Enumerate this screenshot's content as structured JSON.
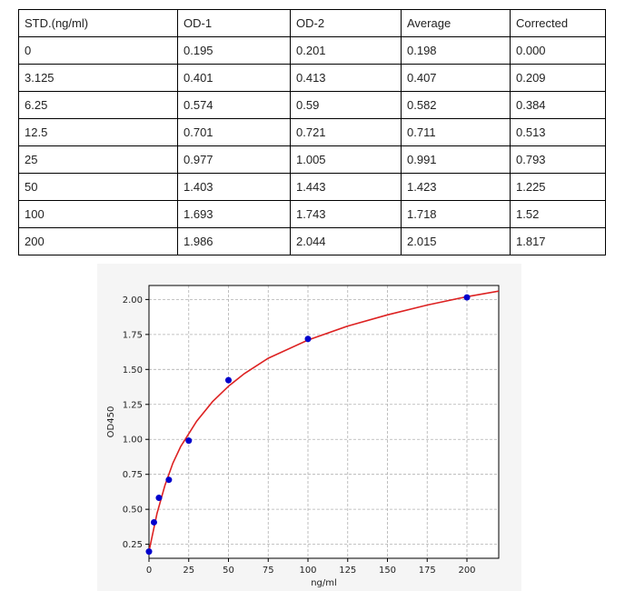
{
  "table": {
    "headers": [
      "STD.(ng/ml)",
      "OD-1",
      "OD-2",
      "Average",
      "Corrected"
    ],
    "rows": [
      [
        "0",
        "0.195",
        "0.201",
        "0.198",
        "0.000"
      ],
      [
        "3.125",
        "0.401",
        "0.413",
        "0.407",
        "0.209"
      ],
      [
        "6.25",
        "0.574",
        "0.59",
        "0.582",
        "0.384"
      ],
      [
        "12.5",
        "0.701",
        "0.721",
        "0.711",
        "0.513"
      ],
      [
        "25",
        "0.977",
        "1.005",
        "0.991",
        "0.793"
      ],
      [
        "50",
        "1.403",
        "1.443",
        "1.423",
        "1.225"
      ],
      [
        "100",
        "1.693",
        "1.743",
        "1.718",
        "1.52"
      ],
      [
        "200",
        "1.986",
        "2.044",
        "2.015",
        "1.817"
      ]
    ]
  },
  "chart_data": {
    "type": "scatter",
    "xlabel": "ng/ml",
    "ylabel": "OD450",
    "xlim": [
      0,
      220
    ],
    "ylim": [
      0.15,
      2.1
    ],
    "xticks": [
      0,
      25,
      50,
      75,
      100,
      125,
      150,
      175,
      200
    ],
    "yticks": [
      0.25,
      0.5,
      0.75,
      1.0,
      1.25,
      1.5,
      1.75,
      2.0
    ],
    "ytick_labels": [
      "0.25",
      "0.50",
      "0.75",
      "1.00",
      "1.25",
      "1.50",
      "1.75",
      "2.00"
    ],
    "grid": true,
    "points": {
      "x": [
        0,
        3.125,
        6.25,
        12.5,
        25,
        50,
        100,
        200
      ],
      "y": [
        0.198,
        0.407,
        0.582,
        0.711,
        0.991,
        1.423,
        1.718,
        2.015
      ],
      "color": "#0000cc"
    },
    "fit_curve": {
      "x": [
        0,
        5,
        10,
        15,
        20,
        25,
        30,
        40,
        50,
        60,
        75,
        100,
        125,
        150,
        175,
        200,
        220
      ],
      "y": [
        0.2,
        0.47,
        0.67,
        0.83,
        0.95,
        1.04,
        1.13,
        1.27,
        1.38,
        1.47,
        1.58,
        1.71,
        1.81,
        1.89,
        1.96,
        2.02,
        2.06
      ],
      "color": "#dd2222"
    },
    "background": "#f5f5f5"
  }
}
